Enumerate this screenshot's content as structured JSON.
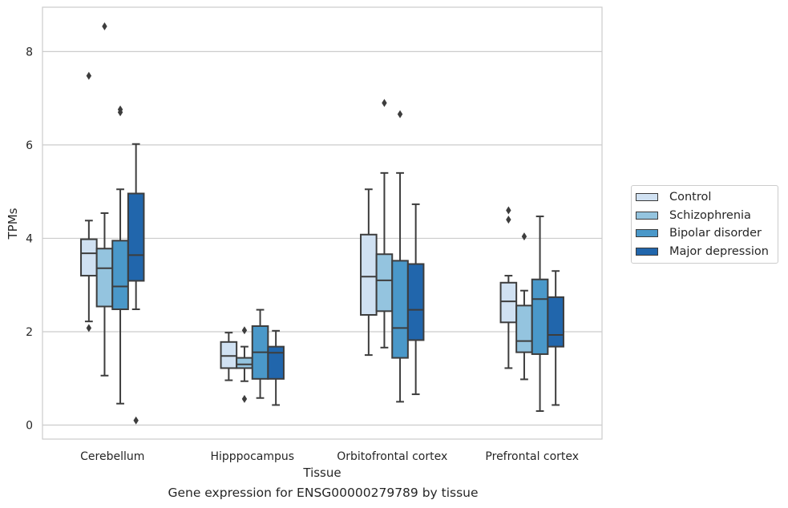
{
  "chart_data": {
    "type": "boxplot",
    "title": "",
    "caption": "Gene expression for ENSG00000279789 by tissue",
    "xlabel": "Tissue",
    "ylabel": "TPMs",
    "ylim": [
      -0.3,
      8.95
    ],
    "yticks": [
      0,
      2,
      4,
      6,
      8
    ],
    "grid": "horizontal",
    "legend_position": "right",
    "categories": [
      "Cerebellum",
      "Hipppocampus",
      "Orbitofrontal cortex",
      "Prefrontal cortex"
    ],
    "series": [
      {
        "name": "Control",
        "color": "#d0e1f2",
        "boxes": [
          {
            "whislo": 2.22,
            "q1": 3.2,
            "med": 3.68,
            "q3": 3.98,
            "whishi": 4.38,
            "fliers": [
              2.08,
              7.48
            ]
          },
          {
            "whislo": 0.96,
            "q1": 1.22,
            "med": 1.48,
            "q3": 1.78,
            "whishi": 1.98,
            "fliers": []
          },
          {
            "whislo": 1.5,
            "q1": 2.36,
            "med": 3.18,
            "q3": 4.08,
            "whishi": 5.05,
            "fliers": []
          },
          {
            "whislo": 1.22,
            "q1": 2.2,
            "med": 2.65,
            "q3": 3.05,
            "whishi": 3.2,
            "fliers": [
              4.4,
              4.6
            ]
          }
        ]
      },
      {
        "name": "Schizophrenia",
        "color": "#94c4df",
        "boxes": [
          {
            "whislo": 1.06,
            "q1": 2.54,
            "med": 3.36,
            "q3": 3.78,
            "whishi": 4.54,
            "fliers": [
              8.54
            ]
          },
          {
            "whislo": 0.94,
            "q1": 1.22,
            "med": 1.3,
            "q3": 1.44,
            "whishi": 1.68,
            "fliers": [
              0.56,
              2.03
            ]
          },
          {
            "whislo": 1.66,
            "q1": 2.44,
            "med": 3.1,
            "q3": 3.66,
            "whishi": 5.4,
            "fliers": [
              6.9
            ]
          },
          {
            "whislo": 0.98,
            "q1": 1.56,
            "med": 1.8,
            "q3": 2.56,
            "whishi": 2.88,
            "fliers": [
              4.04
            ]
          }
        ]
      },
      {
        "name": "Bipolar disorder",
        "color": "#4a98c9",
        "boxes": [
          {
            "whislo": 0.46,
            "q1": 2.48,
            "med": 2.97,
            "q3": 3.95,
            "whishi": 5.05,
            "fliers": [
              6.7,
              6.76
            ]
          },
          {
            "whislo": 0.58,
            "q1": 0.99,
            "med": 1.56,
            "q3": 2.12,
            "whishi": 2.47,
            "fliers": []
          },
          {
            "whislo": 0.5,
            "q1": 1.44,
            "med": 2.08,
            "q3": 3.52,
            "whishi": 5.4,
            "fliers": [
              6.66
            ]
          },
          {
            "whislo": 0.3,
            "q1": 1.52,
            "med": 2.7,
            "q3": 3.12,
            "whishi": 4.47,
            "fliers": []
          }
        ]
      },
      {
        "name": "Major depression",
        "color": "#2166ac",
        "boxes": [
          {
            "whislo": 2.48,
            "q1": 3.09,
            "med": 3.64,
            "q3": 4.96,
            "whishi": 6.02,
            "fliers": [
              0.1
            ]
          },
          {
            "whislo": 0.43,
            "q1": 0.99,
            "med": 1.55,
            "q3": 1.68,
            "whishi": 2.02,
            "fliers": []
          },
          {
            "whislo": 0.66,
            "q1": 1.82,
            "med": 2.47,
            "q3": 3.45,
            "whishi": 4.73,
            "fliers": []
          },
          {
            "whislo": 0.43,
            "q1": 1.68,
            "med": 1.93,
            "q3": 2.74,
            "whishi": 3.3,
            "fliers": []
          }
        ]
      }
    ]
  }
}
